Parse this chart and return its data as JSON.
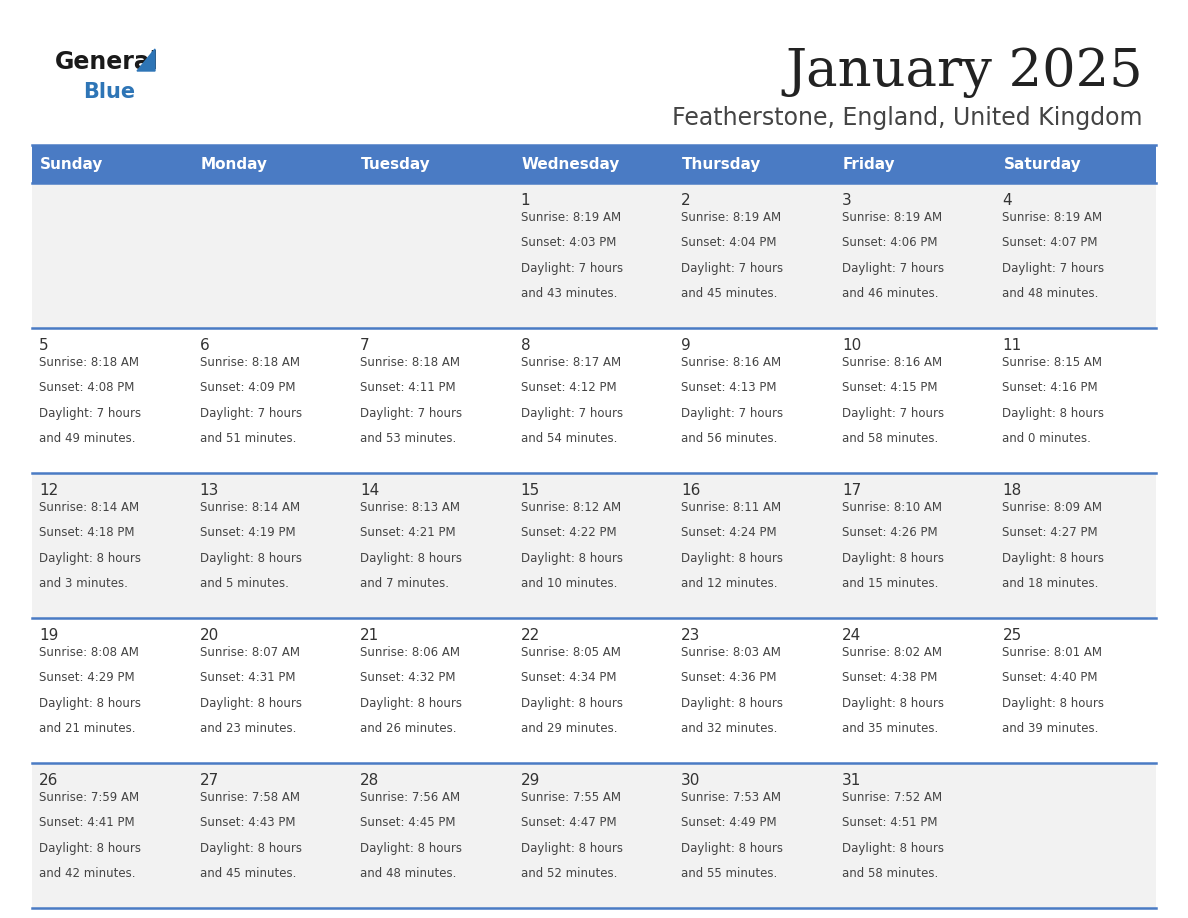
{
  "title": "January 2025",
  "subtitle": "Featherstone, England, United Kingdom",
  "days_of_week": [
    "Sunday",
    "Monday",
    "Tuesday",
    "Wednesday",
    "Thursday",
    "Friday",
    "Saturday"
  ],
  "header_bg": "#4A7BC4",
  "header_text": "#FFFFFF",
  "row_bg_odd": "#F2F2F2",
  "row_bg_even": "#FFFFFF",
  "border_color": "#4A7BC4",
  "day_num_color": "#333333",
  "info_color": "#444444",
  "title_color": "#222222",
  "subtitle_color": "#444444",
  "logo_general_color": "#1a1a1a",
  "logo_blue_color": "#2E75B6",
  "calendar_data": [
    {
      "day": 1,
      "col": 3,
      "row": 0,
      "sunrise": "8:19 AM",
      "sunset": "4:03 PM",
      "daylight_h": "7 hours",
      "daylight_m": "and 43 minutes."
    },
    {
      "day": 2,
      "col": 4,
      "row": 0,
      "sunrise": "8:19 AM",
      "sunset": "4:04 PM",
      "daylight_h": "7 hours",
      "daylight_m": "and 45 minutes."
    },
    {
      "day": 3,
      "col": 5,
      "row": 0,
      "sunrise": "8:19 AM",
      "sunset": "4:06 PM",
      "daylight_h": "7 hours",
      "daylight_m": "and 46 minutes."
    },
    {
      "day": 4,
      "col": 6,
      "row": 0,
      "sunrise": "8:19 AM",
      "sunset": "4:07 PM",
      "daylight_h": "7 hours",
      "daylight_m": "and 48 minutes."
    },
    {
      "day": 5,
      "col": 0,
      "row": 1,
      "sunrise": "8:18 AM",
      "sunset": "4:08 PM",
      "daylight_h": "7 hours",
      "daylight_m": "and 49 minutes."
    },
    {
      "day": 6,
      "col": 1,
      "row": 1,
      "sunrise": "8:18 AM",
      "sunset": "4:09 PM",
      "daylight_h": "7 hours",
      "daylight_m": "and 51 minutes."
    },
    {
      "day": 7,
      "col": 2,
      "row": 1,
      "sunrise": "8:18 AM",
      "sunset": "4:11 PM",
      "daylight_h": "7 hours",
      "daylight_m": "and 53 minutes."
    },
    {
      "day": 8,
      "col": 3,
      "row": 1,
      "sunrise": "8:17 AM",
      "sunset": "4:12 PM",
      "daylight_h": "7 hours",
      "daylight_m": "and 54 minutes."
    },
    {
      "day": 9,
      "col": 4,
      "row": 1,
      "sunrise": "8:16 AM",
      "sunset": "4:13 PM",
      "daylight_h": "7 hours",
      "daylight_m": "and 56 minutes."
    },
    {
      "day": 10,
      "col": 5,
      "row": 1,
      "sunrise": "8:16 AM",
      "sunset": "4:15 PM",
      "daylight_h": "7 hours",
      "daylight_m": "and 58 minutes."
    },
    {
      "day": 11,
      "col": 6,
      "row": 1,
      "sunrise": "8:15 AM",
      "sunset": "4:16 PM",
      "daylight_h": "8 hours",
      "daylight_m": "and 0 minutes."
    },
    {
      "day": 12,
      "col": 0,
      "row": 2,
      "sunrise": "8:14 AM",
      "sunset": "4:18 PM",
      "daylight_h": "8 hours",
      "daylight_m": "and 3 minutes."
    },
    {
      "day": 13,
      "col": 1,
      "row": 2,
      "sunrise": "8:14 AM",
      "sunset": "4:19 PM",
      "daylight_h": "8 hours",
      "daylight_m": "and 5 minutes."
    },
    {
      "day": 14,
      "col": 2,
      "row": 2,
      "sunrise": "8:13 AM",
      "sunset": "4:21 PM",
      "daylight_h": "8 hours",
      "daylight_m": "and 7 minutes."
    },
    {
      "day": 15,
      "col": 3,
      "row": 2,
      "sunrise": "8:12 AM",
      "sunset": "4:22 PM",
      "daylight_h": "8 hours",
      "daylight_m": "and 10 minutes."
    },
    {
      "day": 16,
      "col": 4,
      "row": 2,
      "sunrise": "8:11 AM",
      "sunset": "4:24 PM",
      "daylight_h": "8 hours",
      "daylight_m": "and 12 minutes."
    },
    {
      "day": 17,
      "col": 5,
      "row": 2,
      "sunrise": "8:10 AM",
      "sunset": "4:26 PM",
      "daylight_h": "8 hours",
      "daylight_m": "and 15 minutes."
    },
    {
      "day": 18,
      "col": 6,
      "row": 2,
      "sunrise": "8:09 AM",
      "sunset": "4:27 PM",
      "daylight_h": "8 hours",
      "daylight_m": "and 18 minutes."
    },
    {
      "day": 19,
      "col": 0,
      "row": 3,
      "sunrise": "8:08 AM",
      "sunset": "4:29 PM",
      "daylight_h": "8 hours",
      "daylight_m": "and 21 minutes."
    },
    {
      "day": 20,
      "col": 1,
      "row": 3,
      "sunrise": "8:07 AM",
      "sunset": "4:31 PM",
      "daylight_h": "8 hours",
      "daylight_m": "and 23 minutes."
    },
    {
      "day": 21,
      "col": 2,
      "row": 3,
      "sunrise": "8:06 AM",
      "sunset": "4:32 PM",
      "daylight_h": "8 hours",
      "daylight_m": "and 26 minutes."
    },
    {
      "day": 22,
      "col": 3,
      "row": 3,
      "sunrise": "8:05 AM",
      "sunset": "4:34 PM",
      "daylight_h": "8 hours",
      "daylight_m": "and 29 minutes."
    },
    {
      "day": 23,
      "col": 4,
      "row": 3,
      "sunrise": "8:03 AM",
      "sunset": "4:36 PM",
      "daylight_h": "8 hours",
      "daylight_m": "and 32 minutes."
    },
    {
      "day": 24,
      "col": 5,
      "row": 3,
      "sunrise": "8:02 AM",
      "sunset": "4:38 PM",
      "daylight_h": "8 hours",
      "daylight_m": "and 35 minutes."
    },
    {
      "day": 25,
      "col": 6,
      "row": 3,
      "sunrise": "8:01 AM",
      "sunset": "4:40 PM",
      "daylight_h": "8 hours",
      "daylight_m": "and 39 minutes."
    },
    {
      "day": 26,
      "col": 0,
      "row": 4,
      "sunrise": "7:59 AM",
      "sunset": "4:41 PM",
      "daylight_h": "8 hours",
      "daylight_m": "and 42 minutes."
    },
    {
      "day": 27,
      "col": 1,
      "row": 4,
      "sunrise": "7:58 AM",
      "sunset": "4:43 PM",
      "daylight_h": "8 hours",
      "daylight_m": "and 45 minutes."
    },
    {
      "day": 28,
      "col": 2,
      "row": 4,
      "sunrise": "7:56 AM",
      "sunset": "4:45 PM",
      "daylight_h": "8 hours",
      "daylight_m": "and 48 minutes."
    },
    {
      "day": 29,
      "col": 3,
      "row": 4,
      "sunrise": "7:55 AM",
      "sunset": "4:47 PM",
      "daylight_h": "8 hours",
      "daylight_m": "and 52 minutes."
    },
    {
      "day": 30,
      "col": 4,
      "row": 4,
      "sunrise": "7:53 AM",
      "sunset": "4:49 PM",
      "daylight_h": "8 hours",
      "daylight_m": "and 55 minutes."
    },
    {
      "day": 31,
      "col": 5,
      "row": 4,
      "sunrise": "7:52 AM",
      "sunset": "4:51 PM",
      "daylight_h": "8 hours",
      "daylight_m": "and 58 minutes."
    }
  ]
}
